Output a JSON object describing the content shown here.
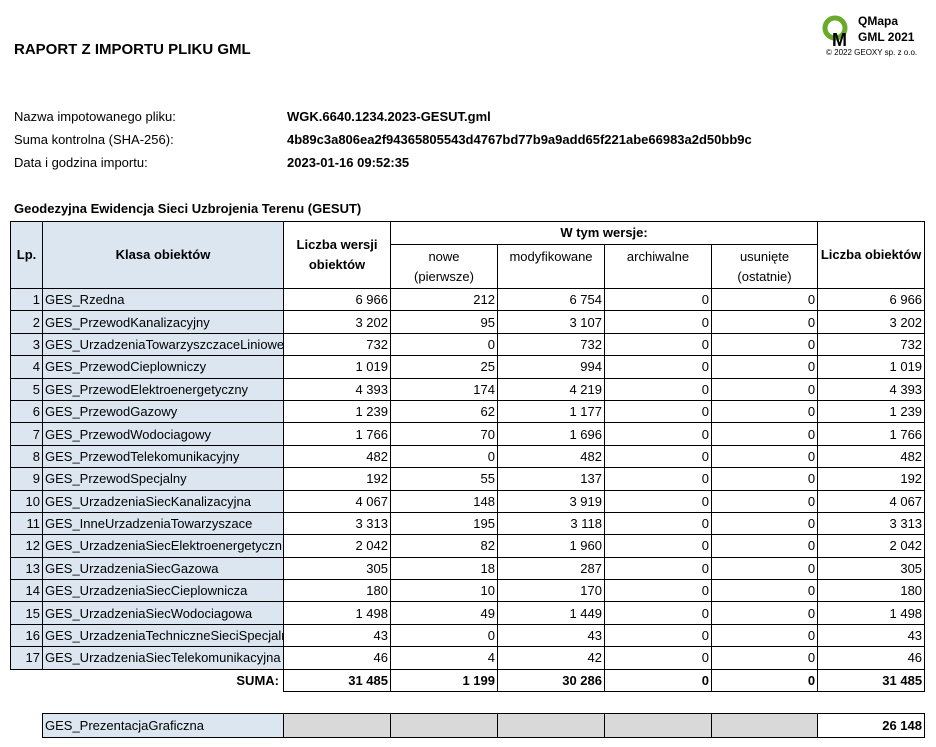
{
  "header": {
    "title": "RAPORT Z IMPORTU PLIKU GML",
    "logo": {
      "line1": "QMapa",
      "line2": "GML 2021",
      "copyright": "© 2022 GEOXY sp. z o.o."
    }
  },
  "info": [
    {
      "label": "Nazwa impotowanego pliku:",
      "value": "WGK.6640.1234.2023-GESUT.gml"
    },
    {
      "label": "Suma kontrolna (SHA-256):",
      "value": "4b89c3a806ea2f94365805543d4767bd77b9a9add65f221abe66983a2d50bb9c"
    },
    {
      "label": "Data i godzina importu:",
      "value": "2023-01-16 09:52:35"
    }
  ],
  "section_title": "Geodezyjna Ewidencja Sieci Uzbrojenia Terenu (GESUT)",
  "table": {
    "headers": {
      "lp": "Lp.",
      "class": "Klasa obiektów",
      "versions": "Liczba wersji obiektów",
      "group": "W tym wersje:",
      "new": "nowe",
      "new_note": "(pierwsze)",
      "modified": "modyfikowane",
      "archived": "archiwalne",
      "deleted": "usunięte",
      "deleted_note": "(ostatnie)",
      "count": "Liczba obiektów"
    },
    "rows": [
      [
        "1",
        "GES_Rzedna",
        "6 966",
        "212",
        "6 754",
        "0",
        "0",
        "6 966"
      ],
      [
        "2",
        "GES_PrzewodKanalizacyjny",
        "3 202",
        "95",
        "3 107",
        "0",
        "0",
        "3 202"
      ],
      [
        "3",
        "GES_UrzadzeniaTowarzyszczaceLiniowe",
        "732",
        "0",
        "732",
        "0",
        "0",
        "732"
      ],
      [
        "4",
        "GES_PrzewodCieplowniczy",
        "1 019",
        "25",
        "994",
        "0",
        "0",
        "1 019"
      ],
      [
        "5",
        "GES_PrzewodElektroenergetyczny",
        "4 393",
        "174",
        "4 219",
        "0",
        "0",
        "4 393"
      ],
      [
        "6",
        "GES_PrzewodGazowy",
        "1 239",
        "62",
        "1 177",
        "0",
        "0",
        "1 239"
      ],
      [
        "7",
        "GES_PrzewodWodociagowy",
        "1 766",
        "70",
        "1 696",
        "0",
        "0",
        "1 766"
      ],
      [
        "8",
        "GES_PrzewodTelekomunikacyjny",
        "482",
        "0",
        "482",
        "0",
        "0",
        "482"
      ],
      [
        "9",
        "GES_PrzewodSpecjalny",
        "192",
        "55",
        "137",
        "0",
        "0",
        "192"
      ],
      [
        "10",
        "GES_UrzadzeniaSiecKanalizacyjna",
        "4 067",
        "148",
        "3 919",
        "0",
        "0",
        "4 067"
      ],
      [
        "11",
        "GES_InneUrzadzeniaTowarzyszace",
        "3 313",
        "195",
        "3 118",
        "0",
        "0",
        "3 313"
      ],
      [
        "12",
        "GES_UrzadzeniaSiecElektroenergetyczn",
        "2 042",
        "82",
        "1 960",
        "0",
        "0",
        "2 042"
      ],
      [
        "13",
        "GES_UrzadzeniaSiecGazowa",
        "305",
        "18",
        "287",
        "0",
        "0",
        "305"
      ],
      [
        "14",
        "GES_UrzadzeniaSiecCieplownicza",
        "180",
        "10",
        "170",
        "0",
        "0",
        "180"
      ],
      [
        "15",
        "GES_UrzadzeniaSiecWodociagowa",
        "1 498",
        "49",
        "1 449",
        "0",
        "0",
        "1 498"
      ],
      [
        "16",
        "GES_UrzadzeniaTechniczneSieciSpecjaln",
        "43",
        "0",
        "43",
        "0",
        "0",
        "43"
      ],
      [
        "17",
        "GES_UrzadzeniaSiecTelekomunikacyjna",
        "46",
        "4",
        "42",
        "0",
        "0",
        "46"
      ]
    ],
    "total": {
      "label": "SUMA:",
      "values": [
        "31 485",
        "1 199",
        "30 286",
        "0",
        "0",
        "31 485"
      ]
    }
  },
  "extra": {
    "class": "GES_PrezentacjaGraficzna",
    "count": "26 148"
  }
}
